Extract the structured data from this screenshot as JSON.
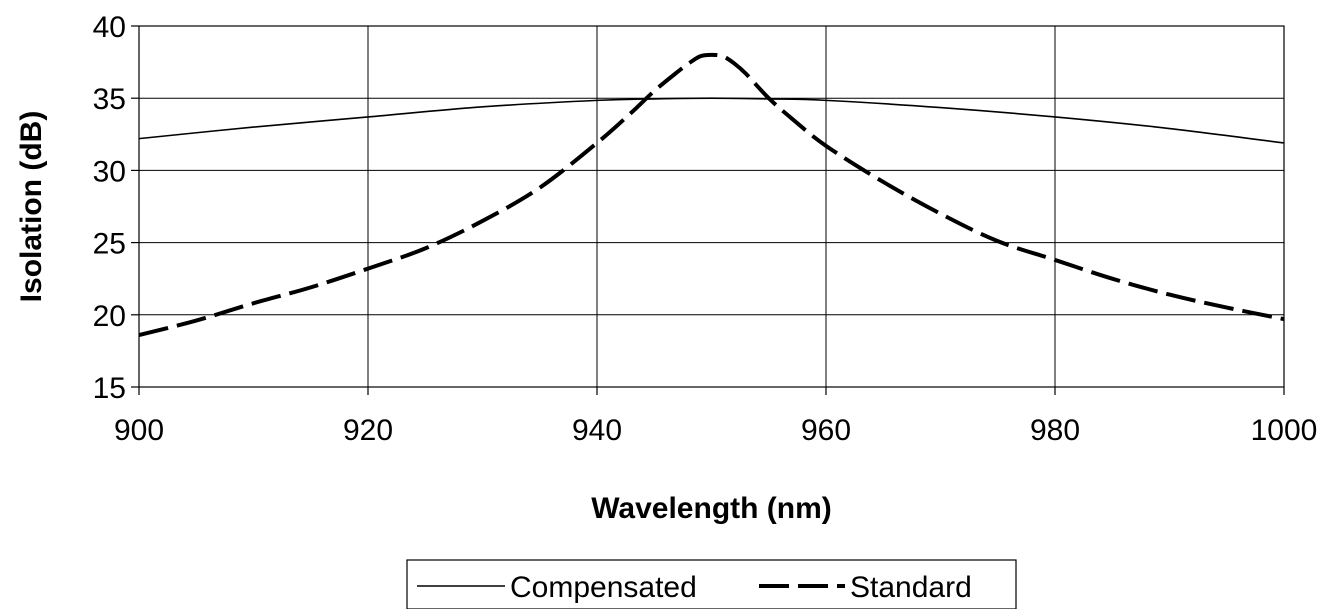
{
  "chart_data": {
    "type": "line",
    "title": "",
    "xlabel": "Wavelength (nm)",
    "ylabel": "Isolation (dB)",
    "xlim": [
      900,
      1000
    ],
    "ylim": [
      15,
      40
    ],
    "xticks": [
      900,
      920,
      940,
      960,
      980,
      1000
    ],
    "yticks": [
      15,
      20,
      25,
      30,
      35,
      40
    ],
    "grid": true,
    "legend_position": "bottom-center",
    "series": [
      {
        "name": "Compensated",
        "style": "solid",
        "color": "#000000",
        "x": [
          900,
          910,
          920,
          930,
          940,
          945,
          950,
          955,
          960,
          970,
          980,
          990,
          1000
        ],
        "y": [
          32.2,
          33.0,
          33.7,
          34.4,
          34.85,
          34.95,
          35.0,
          34.95,
          34.85,
          34.35,
          33.7,
          32.9,
          31.9
        ]
      },
      {
        "name": "Standard",
        "style": "dashed",
        "color": "#000000",
        "x": [
          900,
          905,
          910,
          915,
          920,
          925,
          930,
          935,
          940,
          943,
          945,
          947,
          948,
          949,
          950,
          951,
          952,
          953,
          955,
          957,
          960,
          965,
          970,
          975,
          980,
          985,
          990,
          995,
          1000
        ],
        "y": [
          18.6,
          19.6,
          20.8,
          21.9,
          23.2,
          24.6,
          26.5,
          28.8,
          31.9,
          34.0,
          35.5,
          36.8,
          37.4,
          37.9,
          38.0,
          37.9,
          37.4,
          36.7,
          35.0,
          33.6,
          31.7,
          29.2,
          27.0,
          25.1,
          23.8,
          22.5,
          21.4,
          20.5,
          19.7
        ]
      }
    ]
  }
}
